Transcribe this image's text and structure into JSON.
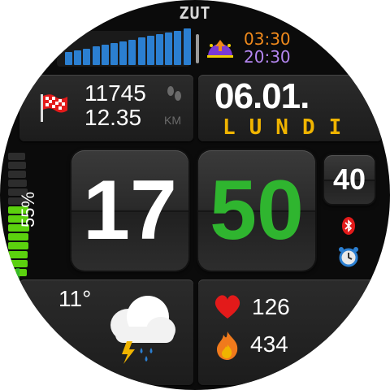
{
  "brand": "ZUT",
  "sun": {
    "sunrise": "03:30",
    "sunset": "20:30",
    "sunrise_color": "#f08a1c",
    "sunset_color": "#b486f0"
  },
  "steps": {
    "count": "11745",
    "distance": "12.35",
    "unit": "KM"
  },
  "date": {
    "day_month": "06.01.",
    "weekday": "LUNDI",
    "weekday_color": "#f0b400"
  },
  "time": {
    "hours": "17",
    "minutes": "50",
    "seconds": "40",
    "minutes_color": "#2fb52f"
  },
  "battery": {
    "percent_label": "55%",
    "level": 55
  },
  "weather": {
    "temperature": "11°"
  },
  "health": {
    "heart_rate": "126",
    "calories": "434"
  },
  "icons": [
    "finish-flag-icon",
    "footsteps-icon",
    "sunrise-sunset-icon",
    "bluetooth-icon",
    "alarm-clock-icon",
    "storm-cloud-icon",
    "heart-icon",
    "flame-icon"
  ]
}
